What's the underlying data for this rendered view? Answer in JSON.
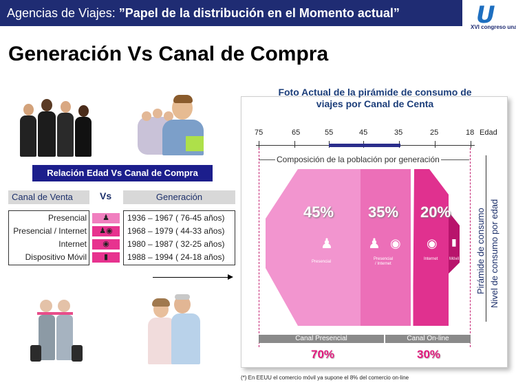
{
  "header": {
    "prefix": "Agencias de Viajes: ",
    "bold": "”Papel de la distribución en el Momento actual”"
  },
  "logo": {
    "mark": "U",
    "text": "XVI congreso unav"
  },
  "title": "Generación Vs Canal de Compra",
  "relacion": "Relación Edad Vs Canal de Compra",
  "table": {
    "canal_header": "Canal de Venta",
    "vs": "Vs",
    "gen_header": "Generación",
    "canales": [
      "Presencial",
      "Presencial / Internet",
      "Internet",
      "Dispositivo Móvil"
    ],
    "generaciones": [
      "1936 – 1967 ( 76-45  años)",
      "1968 – 1979 ( 44-33  años)",
      "1980 – 1987 ( 32-25  años)",
      "1988 – 1994 ( 24-18  años)"
    ]
  },
  "panel": {
    "title_line1": "Foto Actual de la pirámide de consumo de",
    "title_line2": "viajes por Canal de Centa",
    "ticks": [
      "75",
      "65",
      "55",
      "45",
      "35",
      "25",
      "18"
    ],
    "edad": "Edad",
    "composicion": "Composición de la población por generación",
    "pct_presencial": "45%",
    "pct_mixto": "35%",
    "pct_online": "20%",
    "lbl_presencial": "Presencial",
    "lbl_mixto_1": "Presencial",
    "lbl_mixto_2": "/ Internet",
    "lbl_internet": "Internet",
    "lbl_movil": "Móvil",
    "side_1": "Pirámide de consumo",
    "side_2": "Nivel de consumo por edad",
    "canal_presencial": "Canal Presencial",
    "canal_online": "Canal On-line",
    "pct_total_presencial": "70%",
    "pct_total_online": "30%",
    "footnote": "(*) En EEUU el comercio móvil ya supone el 8% del comercio on-line",
    "colors": {
      "light_pink": "#f295cf",
      "mid_pink": "#ec6fb8",
      "hot_pink": "#e0318f",
      "magenta": "#b8146c",
      "navy": "#1f2c73"
    }
  }
}
